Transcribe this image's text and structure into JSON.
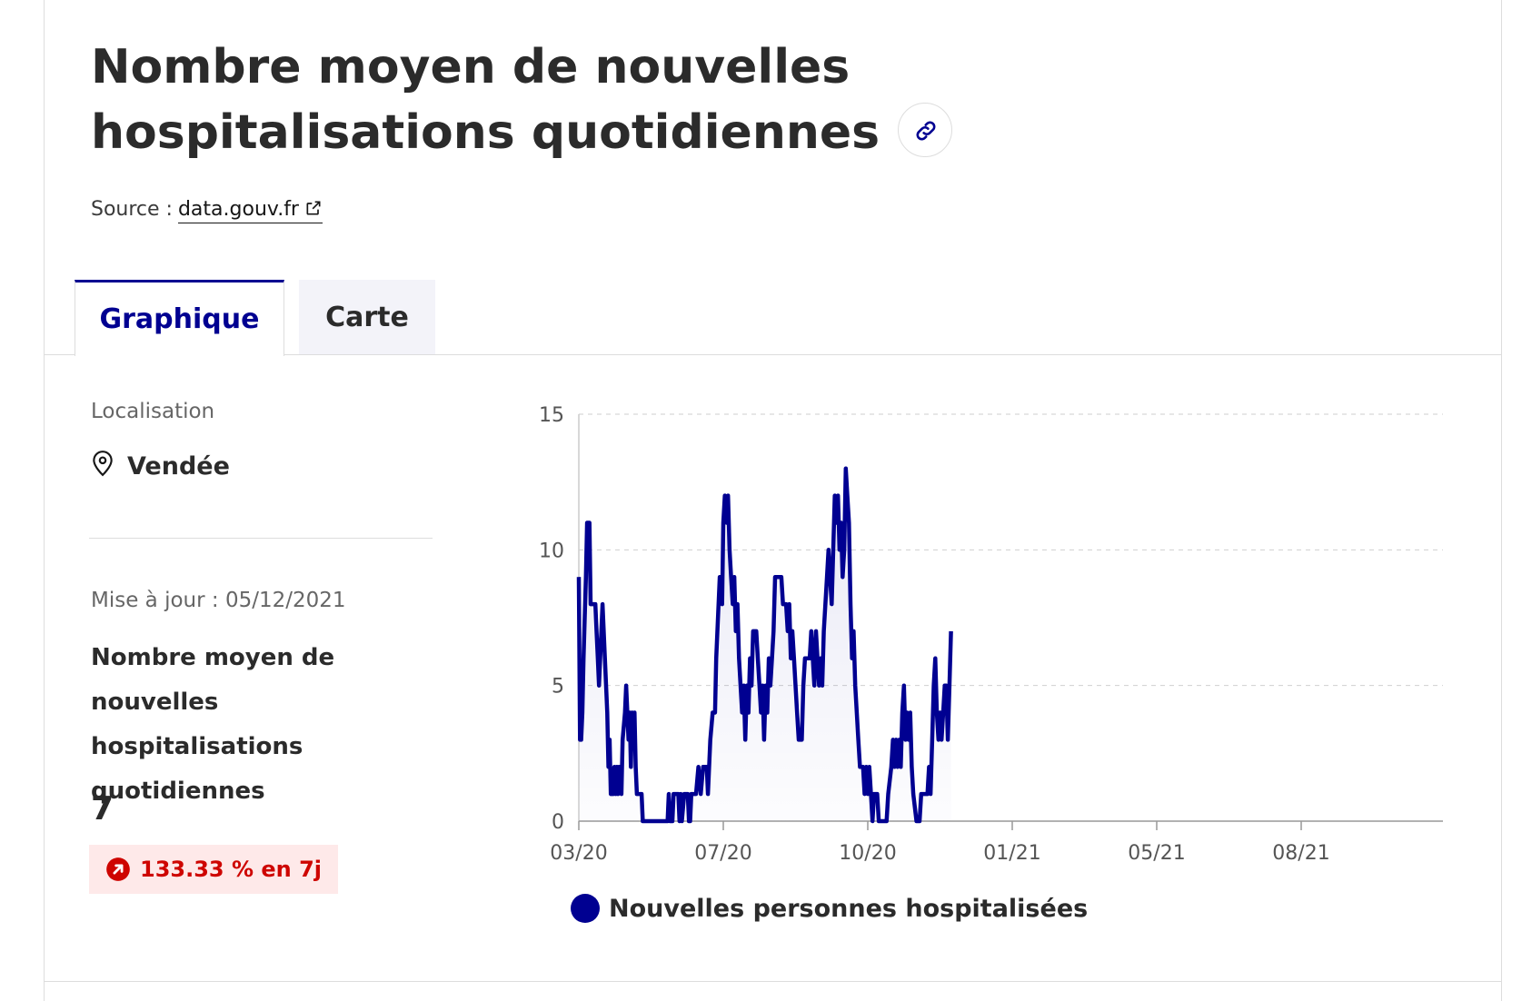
{
  "header": {
    "title": "Nombre moyen de nouvelles hospitalisations quotidiennes",
    "source_prefix": "Source :",
    "source_link": "data.gouv.fr"
  },
  "tabs": [
    {
      "label": "Graphique",
      "active": true
    },
    {
      "label": "Carte",
      "active": false
    }
  ],
  "location": {
    "label": "Localisation",
    "value": "Vendée"
  },
  "indicator": {
    "updated": "Mise à jour : 05/12/2021",
    "name": "Nombre moyen de nouvelles hospitalisations quotidiennes",
    "value": "7",
    "trend": "133.33 % en 7j"
  },
  "colors": {
    "accent": "#000091",
    "trend_up": "#ce0500",
    "trend_bg": "#fee9e9"
  },
  "chart_data": {
    "type": "area",
    "title": "",
    "xlabel": "",
    "ylabel": "",
    "ylim": [
      0,
      15
    ],
    "yticks": [
      0,
      5,
      10,
      15
    ],
    "grid": true,
    "legend_position": "bottom",
    "xticks": [
      {
        "label": "03/20",
        "date": "2020-03-18"
      },
      {
        "label": "07/20",
        "date": "2020-07-18"
      },
      {
        "label": "10/20",
        "date": "2020-10-18"
      },
      {
        "label": "01/21",
        "date": "2021-01-18"
      },
      {
        "label": "05/21",
        "date": "2021-05-18"
      },
      {
        "label": "08/21",
        "date": "2021-08-18"
      }
    ],
    "series": [
      {
        "name": "Nouvelles personnes hospitalisées",
        "color": "#000091",
        "points": [
          [
            "2020-03-18",
            9
          ],
          [
            "2020-03-19",
            3
          ],
          [
            "2020-03-20",
            3
          ],
          [
            "2020-03-21",
            4
          ],
          [
            "2020-03-22",
            6
          ],
          [
            "2020-03-24",
            9
          ],
          [
            "2020-03-25",
            11
          ],
          [
            "2020-03-27",
            11
          ],
          [
            "2020-03-28",
            8
          ],
          [
            "2020-03-30",
            8
          ],
          [
            "2020-04-01",
            8
          ],
          [
            "2020-04-02",
            7
          ],
          [
            "2020-04-03",
            6
          ],
          [
            "2020-04-04",
            5
          ],
          [
            "2020-04-05",
            6
          ],
          [
            "2020-04-06",
            7
          ],
          [
            "2020-04-07",
            8
          ],
          [
            "2020-04-09",
            6
          ],
          [
            "2020-04-11",
            4
          ],
          [
            "2020-04-12",
            2
          ],
          [
            "2020-04-13",
            3
          ],
          [
            "2020-04-14",
            1
          ],
          [
            "2020-04-16",
            1
          ],
          [
            "2020-04-17",
            2
          ],
          [
            "2020-04-18",
            1
          ],
          [
            "2020-04-19",
            2
          ],
          [
            "2020-04-20",
            1
          ],
          [
            "2020-04-21",
            2
          ],
          [
            "2020-04-22",
            2
          ],
          [
            "2020-04-23",
            1
          ],
          [
            "2020-04-24",
            3
          ],
          [
            "2020-04-26",
            4
          ],
          [
            "2020-04-27",
            5
          ],
          [
            "2020-04-28",
            4
          ],
          [
            "2020-04-29",
            3
          ],
          [
            "2020-04-30",
            4
          ],
          [
            "2020-05-01",
            2
          ],
          [
            "2020-05-02",
            4
          ],
          [
            "2020-05-03",
            3
          ],
          [
            "2020-05-04",
            4
          ],
          [
            "2020-05-05",
            2
          ],
          [
            "2020-05-06",
            1
          ],
          [
            "2020-05-10",
            1
          ],
          [
            "2020-05-11",
            0
          ],
          [
            "2020-06-01",
            0
          ],
          [
            "2020-06-02",
            1
          ],
          [
            "2020-06-03",
            0
          ],
          [
            "2020-06-05",
            0
          ],
          [
            "2020-06-06",
            1
          ],
          [
            "2020-06-10",
            1
          ],
          [
            "2020-06-11",
            0
          ],
          [
            "2020-06-12",
            1
          ],
          [
            "2020-06-13",
            0
          ],
          [
            "2020-06-15",
            1
          ],
          [
            "2020-06-18",
            1
          ],
          [
            "2020-06-19",
            0
          ],
          [
            "2020-06-20",
            0
          ],
          [
            "2020-06-21",
            1
          ],
          [
            "2020-06-25",
            1
          ],
          [
            "2020-06-27",
            2
          ],
          [
            "2020-06-29",
            1
          ],
          [
            "2020-07-01",
            2
          ],
          [
            "2020-07-04",
            2
          ],
          [
            "2020-07-05",
            1
          ],
          [
            "2020-07-07",
            3
          ],
          [
            "2020-07-09",
            4
          ],
          [
            "2020-07-11",
            4
          ],
          [
            "2020-07-12",
            6
          ],
          [
            "2020-07-13",
            7
          ],
          [
            "2020-07-15",
            9
          ],
          [
            "2020-07-17",
            8
          ],
          [
            "2020-07-18",
            11
          ],
          [
            "2020-07-19",
            12
          ],
          [
            "2020-07-20",
            11
          ],
          [
            "2020-07-21",
            12
          ],
          [
            "2020-07-22",
            10
          ],
          [
            "2020-07-23",
            9
          ],
          [
            "2020-07-24",
            8
          ],
          [
            "2020-07-25",
            9
          ],
          [
            "2020-07-26",
            7
          ],
          [
            "2020-07-27",
            8
          ],
          [
            "2020-07-28",
            6
          ],
          [
            "2020-07-29",
            5
          ],
          [
            "2020-07-30",
            4
          ],
          [
            "2020-07-31",
            5
          ],
          [
            "2020-08-01",
            3
          ],
          [
            "2020-08-02",
            5
          ],
          [
            "2020-08-03",
            4
          ],
          [
            "2020-08-04",
            6
          ],
          [
            "2020-08-05",
            5
          ],
          [
            "2020-08-06",
            7
          ],
          [
            "2020-08-08",
            7
          ],
          [
            "2020-08-09",
            6
          ],
          [
            "2020-08-10",
            5
          ],
          [
            "2020-08-11",
            4
          ],
          [
            "2020-08-12",
            5
          ],
          [
            "2020-08-13",
            3
          ],
          [
            "2020-08-14",
            5
          ],
          [
            "2020-08-15",
            4
          ],
          [
            "2020-08-16",
            6
          ],
          [
            "2020-08-17",
            5
          ],
          [
            "2020-08-18",
            6
          ],
          [
            "2020-08-19",
            7
          ],
          [
            "2020-08-20",
            9
          ],
          [
            "2020-08-24",
            9
          ],
          [
            "2020-08-25",
            8
          ],
          [
            "2020-08-27",
            8
          ],
          [
            "2020-08-28",
            7
          ],
          [
            "2020-08-29",
            8
          ],
          [
            "2020-08-30",
            6
          ],
          [
            "2020-08-31",
            7
          ],
          [
            "2020-09-01",
            6
          ],
          [
            "2020-09-02",
            5
          ],
          [
            "2020-09-03",
            4
          ],
          [
            "2020-09-04",
            3
          ],
          [
            "2020-09-06",
            3
          ],
          [
            "2020-09-07",
            5
          ],
          [
            "2020-09-08",
            6
          ],
          [
            "2020-09-11",
            6
          ],
          [
            "2020-09-12",
            7
          ],
          [
            "2020-09-13",
            6
          ],
          [
            "2020-09-14",
            5
          ],
          [
            "2020-09-15",
            7
          ],
          [
            "2020-09-16",
            6
          ],
          [
            "2020-09-17",
            5
          ],
          [
            "2020-09-18",
            6
          ],
          [
            "2020-09-19",
            5
          ],
          [
            "2020-09-20",
            7
          ],
          [
            "2020-09-22",
            9
          ],
          [
            "2020-09-23",
            10
          ],
          [
            "2020-09-24",
            9
          ],
          [
            "2020-09-25",
            8
          ],
          [
            "2020-09-26",
            10
          ],
          [
            "2020-09-27",
            12
          ],
          [
            "2020-09-28",
            11
          ],
          [
            "2020-09-29",
            12
          ],
          [
            "2020-09-30",
            10
          ],
          [
            "2020-10-01",
            11
          ],
          [
            "2020-10-02",
            9
          ],
          [
            "2020-10-03",
            10
          ],
          [
            "2020-10-04",
            13
          ],
          [
            "2020-10-05",
            12
          ],
          [
            "2020-10-06",
            11
          ],
          [
            "2020-10-07",
            8
          ],
          [
            "2020-10-08",
            6
          ],
          [
            "2020-10-09",
            7
          ],
          [
            "2020-10-10",
            5
          ],
          [
            "2020-10-11",
            4
          ],
          [
            "2020-10-12",
            3
          ],
          [
            "2020-10-13",
            2
          ],
          [
            "2020-10-15",
            2
          ],
          [
            "2020-10-16",
            1
          ],
          [
            "2020-10-17",
            2
          ],
          [
            "2020-10-18",
            1
          ],
          [
            "2020-10-19",
            2
          ],
          [
            "2020-10-20",
            1
          ],
          [
            "2020-10-21",
            0
          ],
          [
            "2020-10-22",
            1
          ],
          [
            "2020-10-24",
            1
          ],
          [
            "2020-10-25",
            0
          ],
          [
            "2020-10-30",
            0
          ],
          [
            "2020-10-31",
            1
          ],
          [
            "2020-11-02",
            2
          ],
          [
            "2020-11-03",
            3
          ],
          [
            "2020-11-04",
            2
          ],
          [
            "2020-11-05",
            3
          ],
          [
            "2020-11-06",
            2
          ],
          [
            "2020-11-07",
            3
          ],
          [
            "2020-11-08",
            2
          ],
          [
            "2020-11-09",
            4
          ],
          [
            "2020-11-10",
            5
          ],
          [
            "2020-11-11",
            3
          ],
          [
            "2020-11-12",
            4
          ],
          [
            "2020-11-13",
            3
          ],
          [
            "2020-11-14",
            4
          ],
          [
            "2020-11-15",
            2
          ],
          [
            "2020-11-16",
            1
          ],
          [
            "2020-11-18",
            0
          ],
          [
            "2020-11-20",
            0
          ],
          [
            "2020-11-21",
            1
          ],
          [
            "2020-11-25",
            1
          ],
          [
            "2020-11-26",
            2
          ],
          [
            "2020-11-27",
            1
          ],
          [
            "2020-11-28",
            3
          ],
          [
            "2020-11-29",
            5
          ],
          [
            "2020-11-30",
            6
          ],
          [
            "2020-12-01",
            4
          ],
          [
            "2020-12-02",
            3
          ],
          [
            "2020-12-03",
            4
          ],
          [
            "2020-12-04",
            3
          ],
          [
            "2020-12-05",
            4
          ],
          [
            "2020-12-06",
            5
          ],
          [
            "2020-12-07",
            5
          ],
          [
            "2020-12-08",
            3
          ],
          [
            "2020-12-09",
            5
          ],
          [
            "2020-12-10",
            7
          ]
        ]
      }
    ]
  }
}
